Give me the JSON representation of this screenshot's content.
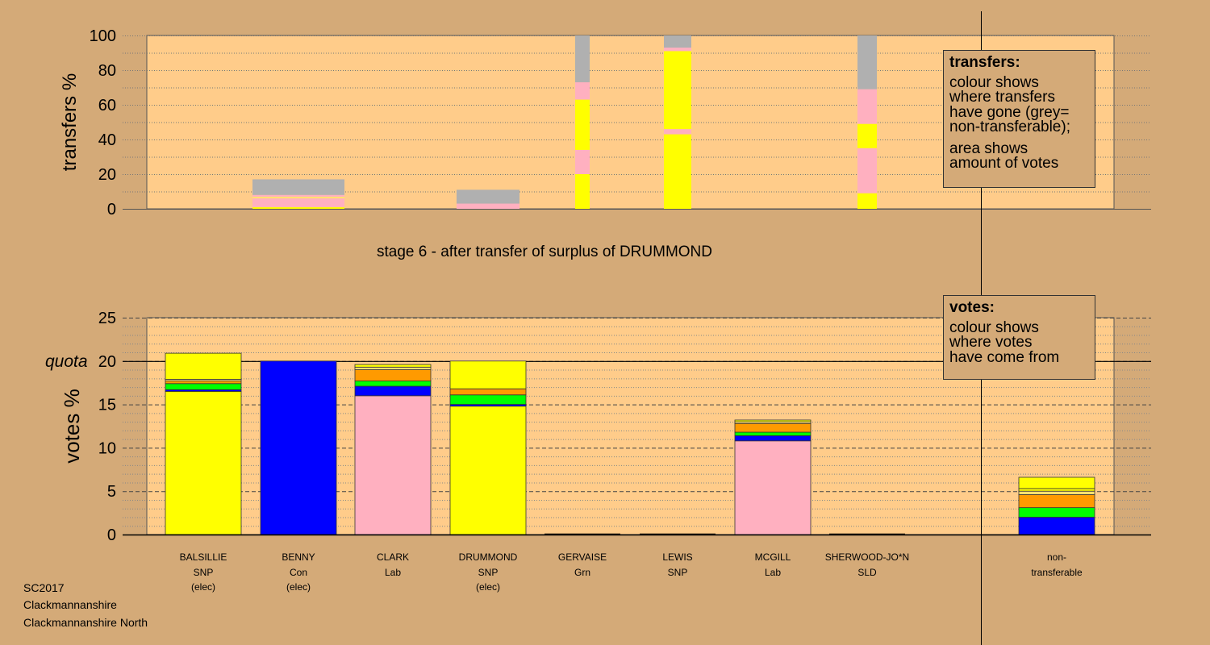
{
  "colors": {
    "page_background": "#d4aa78",
    "plot_background": "#ffcc8a",
    "SNP": "#ffff00",
    "Con": "#0000ff",
    "Lab": "#ffb0c0",
    "Grn": "#00ff00",
    "SLD": "#ff9a00",
    "other": "#ffe070",
    "non_transferable": "#b0b0b0"
  },
  "stage_title": "stage 6 - after transfer of surplus of DRUMMOND",
  "transfers_legend": {
    "title": "transfers:",
    "lines_a": [
      "colour shows",
      "where transfers",
      "have gone (grey=",
      "non-transferable);"
    ],
    "lines_b": [
      "area shows",
      "amount of votes"
    ]
  },
  "votes_legend": {
    "title": "votes:",
    "lines": [
      "colour shows",
      "where votes",
      "have come from"
    ]
  },
  "footer": {
    "line1": "SC2017",
    "line2": "Clackmannanshire",
    "line3": "Clackmannanshire North"
  },
  "chart_data": [
    {
      "type": "bar",
      "name": "transfers",
      "ylabel": "transfers %",
      "ylim": [
        0,
        100
      ],
      "yticks": [
        0,
        20,
        40,
        60,
        80,
        100
      ],
      "grid": "dotted every 10",
      "note": "bar width shows amount of votes",
      "bars": [
        {
          "candidate": "BENNY",
          "segments": [
            {
              "party": "SNP",
              "from": 0,
              "to": 1
            },
            {
              "party": "Lab",
              "from": 1,
              "to": 6
            },
            {
              "party": "other",
              "from": 6,
              "to": 7
            },
            {
              "party": "Lab",
              "from": 7,
              "to": 8
            },
            {
              "party": "non_transferable",
              "from": 8,
              "to": 17
            }
          ]
        },
        {
          "candidate": "DRUMMOND",
          "segments": [
            {
              "party": "Lab",
              "from": 0,
              "to": 3
            },
            {
              "party": "non_transferable",
              "from": 3,
              "to": 11
            }
          ]
        },
        {
          "candidate": "GERVAISE",
          "segments": [
            {
              "party": "SNP",
              "from": 0,
              "to": 20
            },
            {
              "party": "Lab",
              "from": 20,
              "to": 34
            },
            {
              "party": "SNP",
              "from": 34,
              "to": 63
            },
            {
              "party": "Lab",
              "from": 63,
              "to": 73
            },
            {
              "party": "non_transferable",
              "from": 73,
              "to": 100
            }
          ]
        },
        {
          "candidate": "LEWIS",
          "segments": [
            {
              "party": "SNP",
              "from": 0,
              "to": 43
            },
            {
              "party": "Lab",
              "from": 43,
              "to": 46
            },
            {
              "party": "SNP",
              "from": 46,
              "to": 91
            },
            {
              "party": "Lab",
              "from": 91,
              "to": 93
            },
            {
              "party": "non_transferable",
              "from": 93,
              "to": 100
            }
          ]
        },
        {
          "candidate": "SHERWOOD-JO*N",
          "segments": [
            {
              "party": "SNP",
              "from": 0,
              "to": 9
            },
            {
              "party": "Lab",
              "from": 9,
              "to": 35
            },
            {
              "party": "SNP",
              "from": 35,
              "to": 49
            },
            {
              "party": "Lab",
              "from": 49,
              "to": 69
            },
            {
              "party": "non_transferable",
              "from": 69,
              "to": 100
            }
          ]
        }
      ]
    },
    {
      "type": "bar",
      "name": "votes",
      "ylabel": "votes %",
      "ylim": [
        0,
        25
      ],
      "yticks": [
        0,
        5,
        10,
        15,
        20,
        25
      ],
      "quota": 20,
      "quota_label": "quota",
      "grid": "dotted every 1, dashed every 5",
      "stacked": true,
      "candidates": [
        {
          "name": "BALSILLIE",
          "party": "SNP",
          "status": "(elec)",
          "segments": [
            {
              "party": "SNP",
              "value": 16.5
            },
            {
              "party": "Con",
              "value": 0.2
            },
            {
              "party": "Grn",
              "value": 0.7
            },
            {
              "party": "SLD",
              "value": 0.3
            },
            {
              "party": "other",
              "value": 0.2
            },
            {
              "party": "SNP",
              "value": 3.0
            }
          ]
        },
        {
          "name": "BENNY",
          "party": "Con",
          "status": "(elec)",
          "segments": [
            {
              "party": "Con",
              "value": 20.0
            }
          ]
        },
        {
          "name": "CLARK",
          "party": "Lab",
          "status": "",
          "segments": [
            {
              "party": "Lab",
              "value": 16.0
            },
            {
              "party": "Con",
              "value": 1.1
            },
            {
              "party": "Grn",
              "value": 0.6
            },
            {
              "party": "SLD",
              "value": 1.3
            },
            {
              "party": "other",
              "value": 0.3
            },
            {
              "party": "SNP",
              "value": 0.3
            }
          ]
        },
        {
          "name": "DRUMMOND",
          "party": "SNP",
          "status": "(elec)",
          "segments": [
            {
              "party": "SNP",
              "value": 14.8
            },
            {
              "party": "Con",
              "value": 0.2
            },
            {
              "party": "Grn",
              "value": 1.1
            },
            {
              "party": "SLD",
              "value": 0.7
            },
            {
              "party": "SNP",
              "value": 3.2
            }
          ]
        },
        {
          "name": "GERVAISE",
          "party": "Grn",
          "status": "",
          "segments": []
        },
        {
          "name": "LEWIS",
          "party": "SNP",
          "status": "",
          "segments": []
        },
        {
          "name": "MCGILL",
          "party": "Lab",
          "status": "",
          "segments": [
            {
              "party": "Lab",
              "value": 10.8
            },
            {
              "party": "Con",
              "value": 0.6
            },
            {
              "party": "Grn",
              "value": 0.4
            },
            {
              "party": "SLD",
              "value": 1.0
            },
            {
              "party": "other",
              "value": 0.2
            },
            {
              "party": "SNP",
              "value": 0.2
            }
          ]
        },
        {
          "name": "SHERWOOD-JO*N",
          "party": "SLD",
          "status": "",
          "segments": []
        }
      ],
      "non_transferable": {
        "label1": "non-",
        "label2": "transferable",
        "segments": [
          {
            "party": "Con",
            "value": 2.0
          },
          {
            "party": "Grn",
            "value": 1.1
          },
          {
            "party": "SLD",
            "value": 1.5
          },
          {
            "party": "other",
            "value": 0.4
          },
          {
            "party": "SNP",
            "value": 0.3
          },
          {
            "party": "SNP",
            "value": 1.3
          }
        ]
      }
    }
  ]
}
